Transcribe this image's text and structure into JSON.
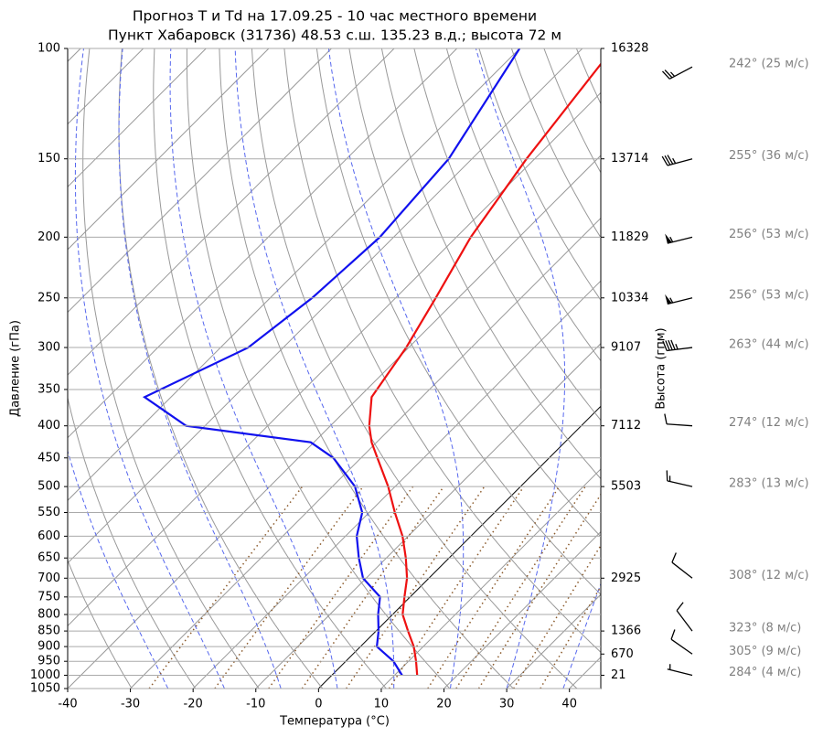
{
  "chart_data": {
    "type": "skewt",
    "title": "Прогноз T и Td на 17.09.25 - 10 час местного времени",
    "subtitle": "Пункт Хабаровск (31736) 48.53 с.ш. 135.23 в.д.; высота 72 м",
    "x_label": "Температура (°C)",
    "y_label": "Давление (гПа)",
    "y2_label": "Высота (гпм)",
    "xlim": [
      -40,
      45
    ],
    "xticks": [
      -40,
      -30,
      -20,
      -10,
      0,
      10,
      20,
      30,
      40
    ],
    "ylim": [
      1050,
      100
    ],
    "ylog": true,
    "grid": true,
    "yticks": [
      100,
      150,
      200,
      250,
      300,
      350,
      400,
      450,
      500,
      550,
      600,
      650,
      700,
      750,
      800,
      850,
      900,
      950,
      1000,
      1050
    ],
    "pressures": [
      1000,
      950,
      900,
      850,
      800,
      750,
      700,
      650,
      600,
      550,
      500,
      450,
      425,
      400,
      360,
      300,
      250,
      200,
      150,
      100
    ],
    "series": [
      {
        "color": "#ee1111",
        "values": [
          13.6,
          11.2,
          8.5,
          5.1,
          1.6,
          -0.9,
          -3.5,
          -6.9,
          -10.9,
          -15.9,
          -21.1,
          -27.4,
          -30.8,
          -33.8,
          -38.0,
          -40.4,
          -43.6,
          -47.7,
          -51.3,
          -55.1
        ]
      },
      {
        "color": "#1111ee",
        "values": [
          11.2,
          7.6,
          2.6,
          0.4,
          -2.3,
          -4.8,
          -10.5,
          -14.4,
          -18.2,
          -21.1,
          -26.4,
          -34.4,
          -40.5,
          -63.0,
          -74.2,
          -65.6,
          -63.3,
          -62.2,
          -63.7,
          -70.0
        ]
      }
    ],
    "heights": {
      "pressures": [
        100,
        150,
        200,
        250,
        300,
        400,
        500,
        700,
        850,
        925,
        1000
      ],
      "values": [
        16328,
        13714,
        11829,
        10334,
        9107,
        7112,
        5503,
        2925,
        1366,
        670,
        21
      ]
    },
    "wind": {
      "pressures": [
        107,
        150,
        200,
        250,
        300,
        400,
        500,
        700,
        850,
        925,
        1000
      ],
      "directions": [
        242,
        255,
        256,
        256,
        263,
        274,
        283,
        308,
        323,
        305,
        284
      ],
      "speeds": [
        25,
        36,
        53,
        53,
        44,
        12,
        13,
        12,
        8,
        9,
        4
      ],
      "labels": [
        "242° (25 м/с)",
        "255° (36 м/с)",
        "256° (53 м/с)",
        "256° (53 м/с)",
        "263° (44 м/с)",
        "274° (12 м/с)",
        "283° (13 м/с)",
        "308° (12 м/с)",
        "323° (8 м/с)",
        "305° (9 м/с)",
        "284° (4 м/с)"
      ]
    }
  }
}
